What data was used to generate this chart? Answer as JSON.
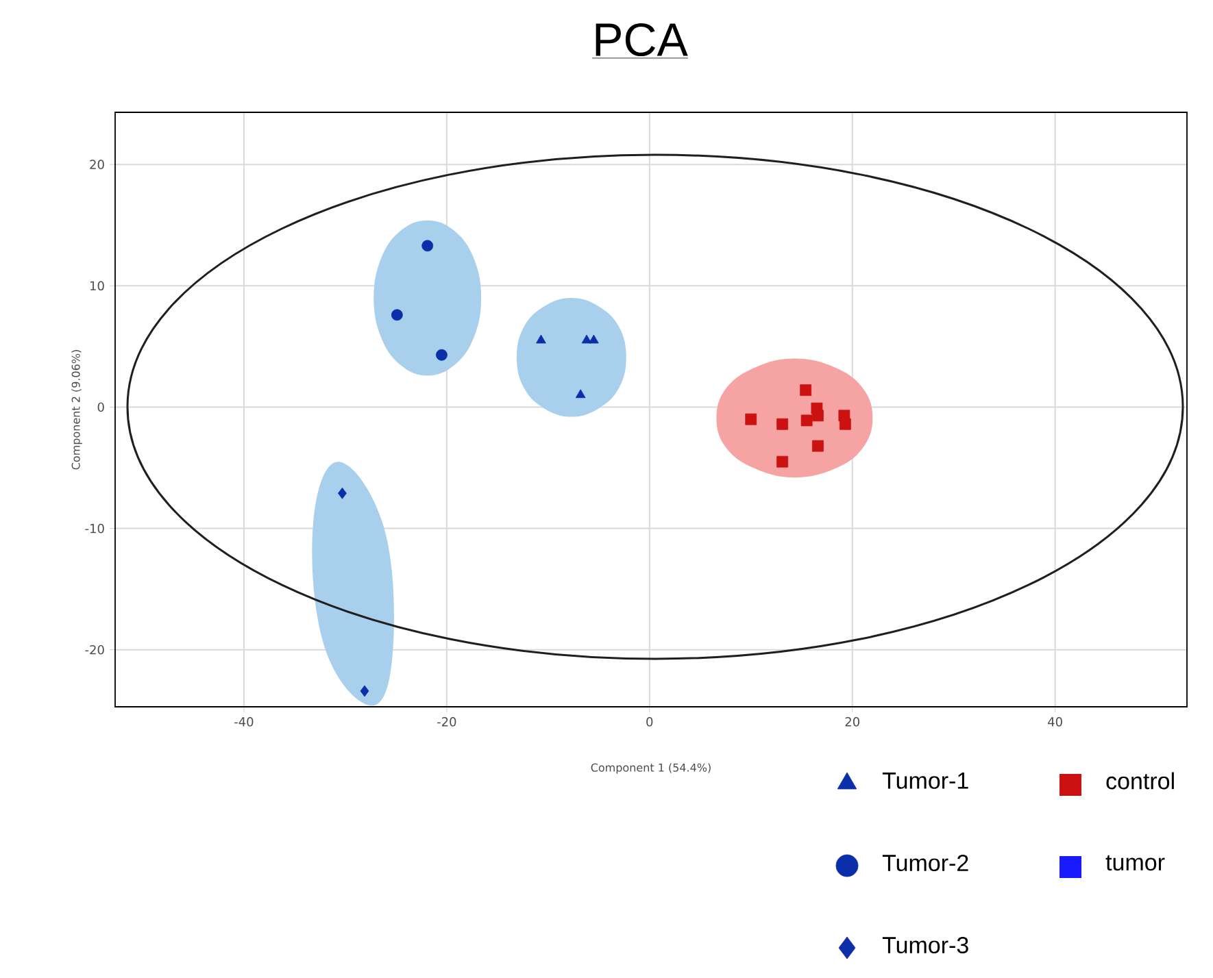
{
  "chart_data": {
    "type": "scatter",
    "title": "PCA",
    "xlabel": "Component 1 (54.4%)",
    "ylabel": "Component 2 (9.06%)",
    "xlim": [
      -52.7,
      53.0
    ],
    "ylim": [
      -24.7,
      24.3
    ],
    "xticks": [
      -40,
      -20,
      0,
      20,
      40
    ],
    "yticks": [
      -20,
      -10,
      0,
      10,
      20
    ],
    "grid": true,
    "legend": "bottom right",
    "series": [
      {
        "type": "area",
        "color": "#a8d0ec",
        "x": [
          -16.6,
          -17.3,
          -19.2,
          -21.9,
          -24.6,
          -26.5,
          -27.2,
          -26.5,
          -24.6,
          -21.9,
          -19.2,
          -17.3
        ],
        "values": [
          9.0,
          12.2,
          14.5,
          15.4,
          14.5,
          12.2,
          9.0,
          5.8,
          3.5,
          2.6,
          3.5,
          5.8
        ]
      },
      {
        "type": "area",
        "color": "#a8d0ec",
        "x": [
          -2.3,
          -3.0,
          -5.0,
          -7.7,
          -10.4,
          -12.4,
          -13.1,
          -12.4,
          -10.4,
          -7.7,
          -5.0,
          -3.0
        ],
        "values": [
          4.1,
          6.6,
          8.3,
          9.0,
          8.3,
          6.6,
          4.1,
          1.6,
          -0.1,
          -0.8,
          -0.1,
          1.6
        ]
      },
      {
        "type": "area",
        "color": "#a8d0ec",
        "x": [
          -30.7,
          -26.2,
          -25.3,
          -27.4,
          -32.0,
          -33.2
        ],
        "values": [
          -4.5,
          -9.9,
          -19.9,
          -24.6,
          -19.9,
          -9.9
        ]
      },
      {
        "type": "area",
        "color": "#f5a3a3",
        "x": [
          22.0,
          21.0,
          18.2,
          14.3,
          10.5,
          7.6,
          6.6,
          7.6,
          10.5,
          14.3,
          18.2,
          21.0
        ],
        "values": [
          -0.9,
          1.6,
          3.3,
          4.0,
          3.3,
          1.6,
          -0.9,
          -3.4,
          -5.1,
          -5.8,
          -5.1,
          -3.4
        ]
      },
      {
        "type": "scatter",
        "name": "Tumor-1",
        "marker": "triangle",
        "color": "#0a2fa8",
        "x": [
          -10.7,
          -6.2,
          -5.5,
          -6.8
        ],
        "values": [
          5.5,
          5.5,
          5.5,
          1.0
        ]
      },
      {
        "type": "scatter",
        "name": "Tumor-2",
        "marker": "circle",
        "color": "#0a2fa8",
        "x": [
          -21.9,
          -24.9,
          -20.5
        ],
        "values": [
          13.3,
          7.6,
          4.3
        ]
      },
      {
        "type": "scatter",
        "name": "Tumor-3",
        "marker": "diamond",
        "color": "#0a2fa8",
        "x": [
          -30.3,
          -28.1
        ],
        "values": [
          -7.1,
          -23.4
        ]
      },
      {
        "type": "scatter",
        "name": "control",
        "marker": "square",
        "color": "#cc1111",
        "x": [
          15.4,
          10.0,
          13.1,
          15.5,
          16.5,
          16.6,
          19.2,
          19.3,
          16.6,
          13.1
        ],
        "values": [
          1.4,
          -1.0,
          -1.4,
          -1.1,
          -0.1,
          -0.7,
          -0.7,
          -1.4,
          -3.2,
          -4.5
        ]
      },
      {
        "type": "area",
        "name": "tumor",
        "color": "#1a1aff"
      }
    ]
  }
}
